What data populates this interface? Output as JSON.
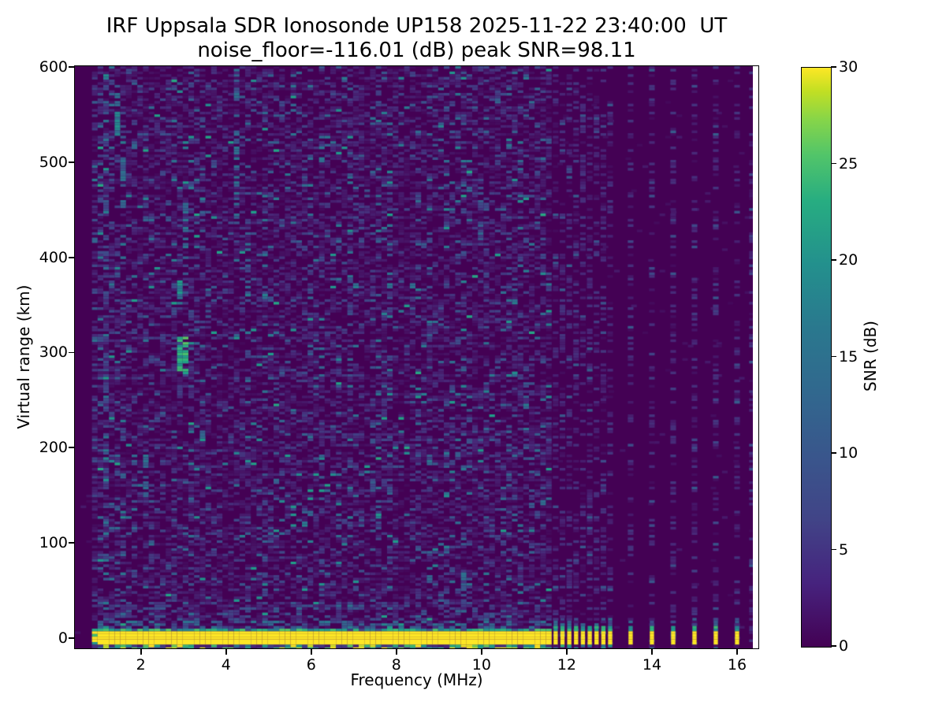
{
  "colors": {
    "figure_bg": "#ffffff",
    "text": "#000000",
    "axis": "#000000",
    "cmap_min": "#440154",
    "cmap_mid": "#21918c",
    "cmap_max": "#fde725"
  },
  "chart_data": {
    "type": "heatmap",
    "title": "IRF Uppsala SDR Ionosonde UP158 2025-11-22 23:40:00  UT",
    "subtitle": "noise_floor=-116.01 (dB) peak SNR=98.11",
    "station": "UP158",
    "timestamp_ut": "2025-11-22 23:40:00",
    "noise_floor_db": -116.01,
    "peak_snr_db": 98.11,
    "xlabel": "Frequency (MHz)",
    "ylabel": "Virtual range (km)",
    "xlim": [
      0.45,
      16.5
    ],
    "ylim": [
      -11,
      601
    ],
    "xticks": [
      2,
      4,
      6,
      8,
      10,
      12,
      14,
      16
    ],
    "yticks": [
      0,
      100,
      200,
      300,
      400,
      500,
      600
    ],
    "grid": false,
    "legend": "none",
    "colormap": "viridis",
    "colorbar": {
      "label": "SNR (dB)",
      "ticks": [
        0,
        5,
        10,
        15,
        20,
        25,
        30
      ],
      "vmin": 0,
      "vmax": 30,
      "position": "right"
    },
    "sweep": {
      "continuous_freq_mhz": [
        0.88,
        11.6
      ],
      "data_freq_max_mhz": 16.37,
      "ground_echo": {
        "range_km": [
          -7,
          7
        ],
        "snr_db": 30,
        "top_edge_km": [
          7,
          11
        ],
        "top_edge_snr_db": [
          10,
          22
        ]
      },
      "stepped_freqs_mhz": [
        11.74,
        11.9,
        12.06,
        12.22,
        12.38,
        12.54,
        12.7,
        12.86,
        13.02,
        13.5,
        14.0,
        14.5,
        15.0,
        15.5,
        16.0,
        16.35
      ],
      "noise_speckle_db": [
        0,
        15
      ],
      "echo_streaks": [
        {
          "freq_mhz": 1.18,
          "km": [
            60,
            600
          ],
          "snr_db": 7,
          "density": 0.22
        },
        {
          "freq_mhz": 1.45,
          "km": [
            528,
            572
          ],
          "snr_db": 14,
          "density": 0.6
        },
        {
          "freq_mhz": 1.62,
          "km": [
            452,
            508
          ],
          "snr_db": 11,
          "density": 0.5
        },
        {
          "freq_mhz": 2.12,
          "km": [
            148,
            196
          ],
          "snr_db": 11,
          "density": 0.5
        },
        {
          "freq_mhz": 2.98,
          "km": [
            276,
            318
          ],
          "snr_db": 21,
          "density": 0.85
        },
        {
          "freq_mhz": 2.95,
          "km": [
            350,
            378
          ],
          "snr_db": 15,
          "density": 0.65
        },
        {
          "freq_mhz": 3.05,
          "km": [
            408,
            462
          ],
          "snr_db": 12,
          "density": 0.5
        },
        {
          "freq_mhz": 4.25,
          "km": [
            428,
            600
          ],
          "snr_db": 11,
          "density": 0.4
        },
        {
          "freq_mhz": 4.5,
          "km": [
            348,
            432
          ],
          "snr_db": 10,
          "density": 0.38
        },
        {
          "freq_mhz": 5.1,
          "km": [
            88,
            152
          ],
          "snr_db": 9,
          "density": 0.35
        },
        {
          "freq_mhz": 6.1,
          "km": [
            248,
            332
          ],
          "snr_db": 9,
          "density": 0.3
        },
        {
          "freq_mhz": 7.5,
          "km": [
            150,
            230
          ],
          "snr_db": 8,
          "density": 0.25
        },
        {
          "freq_mhz": 9.95,
          "km": [
            418,
            482
          ],
          "snr_db": 9,
          "density": 0.35
        }
      ]
    }
  }
}
